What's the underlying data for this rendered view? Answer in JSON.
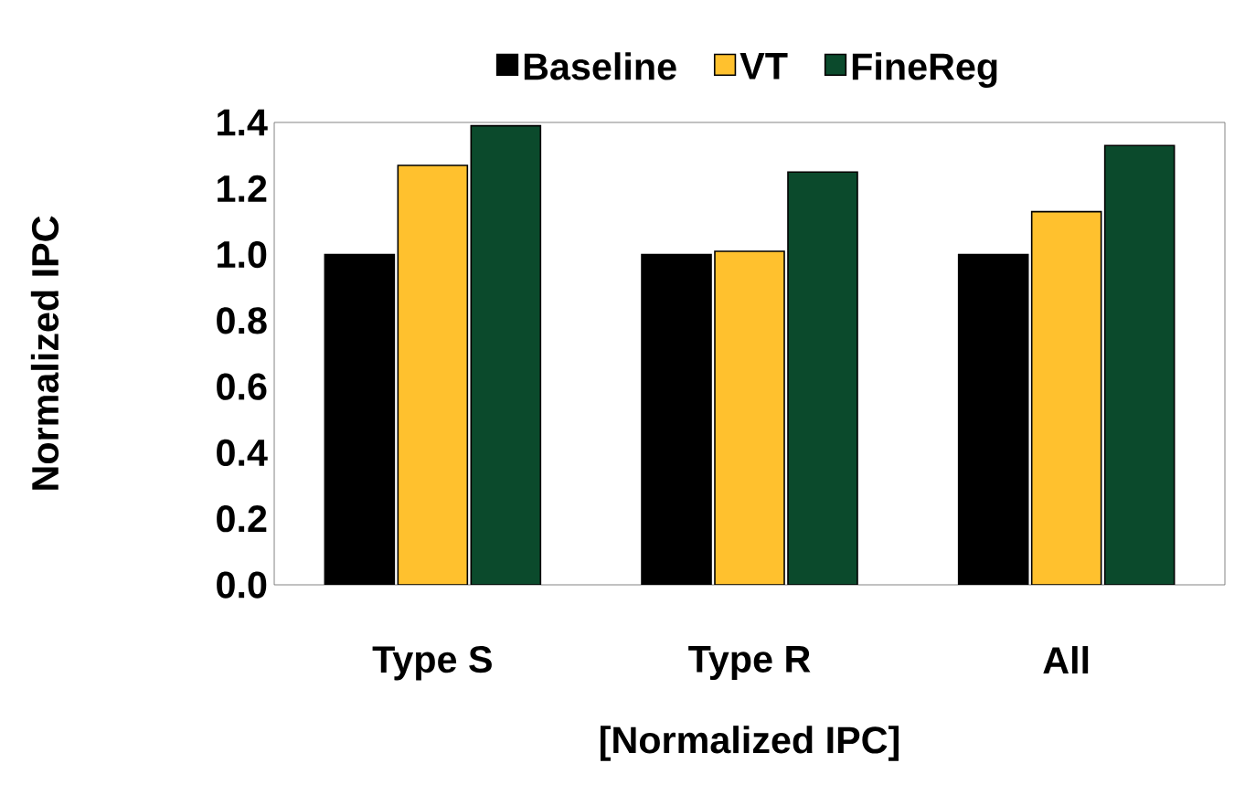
{
  "chart_data": {
    "type": "bar",
    "xlabel": "[Normalized IPC]",
    "ylabel": "Normalized IPC",
    "categories": [
      "Type S",
      "Type R",
      "All"
    ],
    "series": [
      {
        "name": "Baseline",
        "color": "#000000",
        "values": [
          1.0,
          1.0,
          1.0
        ]
      },
      {
        "name": "VT",
        "color": "#ffc12e",
        "values": [
          1.27,
          1.01,
          1.13
        ]
      },
      {
        "name": "FineReg",
        "color": "#0b4a2c",
        "values": [
          1.39,
          1.25,
          1.33
        ]
      }
    ],
    "ylim": [
      0,
      1.4
    ],
    "yticks": [
      {
        "value": 0,
        "label": "0.0"
      },
      {
        "value": 0.2,
        "label": "0.2"
      },
      {
        "value": 0.4,
        "label": "0.4"
      },
      {
        "value": 0.6,
        "label": "0.6"
      },
      {
        "value": 0.8,
        "label": "0.8"
      },
      {
        "value": 1.0,
        "label": "1.0"
      },
      {
        "value": 1.2,
        "label": "1.2"
      },
      {
        "value": 1.4,
        "label": "1.4"
      }
    ],
    "grid": false,
    "legend": "top"
  }
}
